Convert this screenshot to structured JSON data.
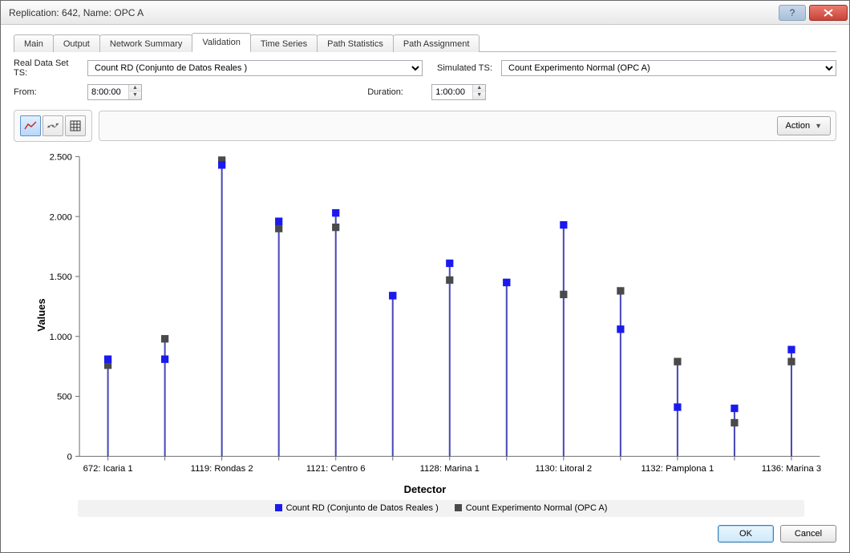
{
  "window": {
    "title": "Replication: 642, Name: OPC A"
  },
  "tabs": [
    {
      "label": "Main",
      "active": false
    },
    {
      "label": "Output",
      "active": false
    },
    {
      "label": "Network Summary",
      "active": false
    },
    {
      "label": "Validation",
      "active": true
    },
    {
      "label": "Time Series",
      "active": false
    },
    {
      "label": "Path Statistics",
      "active": false
    },
    {
      "label": "Path Assignment",
      "active": false
    }
  ],
  "controls": {
    "real_ts_label": "Real Data Set TS:",
    "real_ts_value": "Count RD (Conjunto de Datos Reales )",
    "sim_ts_label": "Simulated TS:",
    "sim_ts_value": "Count Experimento Normal (OPC A)",
    "from_label": "From:",
    "from_value": "8:00:00",
    "duration_label": "Duration:",
    "duration_value": "1:00:00",
    "action_label": "Action"
  },
  "chart": {
    "type": "verticalDotStem",
    "y_axis_label": "Values",
    "x_axis_label": "Detector",
    "ylim": [
      0,
      2500
    ],
    "ytick_step": 500,
    "ytick_labels": [
      "0",
      "500",
      "1.000",
      "1.500",
      "2.000",
      "2.500"
    ],
    "axis_color": "#707070",
    "background_color": "#ffffff",
    "series": [
      {
        "name": "Count RD (Conjunto de Datos Reales )",
        "color": "#1a1af0"
      },
      {
        "name": "Count Experimento Normal (OPC A)",
        "color": "#4a4a4a"
      }
    ],
    "categories": [
      "672: Icaria 1",
      "",
      "1119: Rondas 2",
      "",
      "1121: Centro 6",
      "",
      "1128: Marina 1",
      "",
      "1130: Litoral 2",
      "",
      "1132: Pamplona 1",
      "",
      "1136: Marina 3"
    ],
    "values": {
      "rd": [
        810,
        810,
        2430,
        1960,
        2030,
        1340,
        1610,
        1450,
        1930,
        1060,
        410,
        400,
        890
      ],
      "sim": [
        760,
        980,
        2470,
        1900,
        1910,
        1340,
        1470,
        1450,
        1350,
        1380,
        790,
        280,
        790
      ]
    },
    "marker_size": 9,
    "stem_color": "#4a4ab8",
    "stem_width": 2
  },
  "legend": {
    "items": [
      {
        "color": "#1a1af0",
        "label": "Count RD (Conjunto de Datos Reales )"
      },
      {
        "color": "#4a4a4a",
        "label": "Count Experimento Normal (OPC A)"
      }
    ]
  },
  "footer": {
    "ok": "OK",
    "cancel": "Cancel"
  }
}
